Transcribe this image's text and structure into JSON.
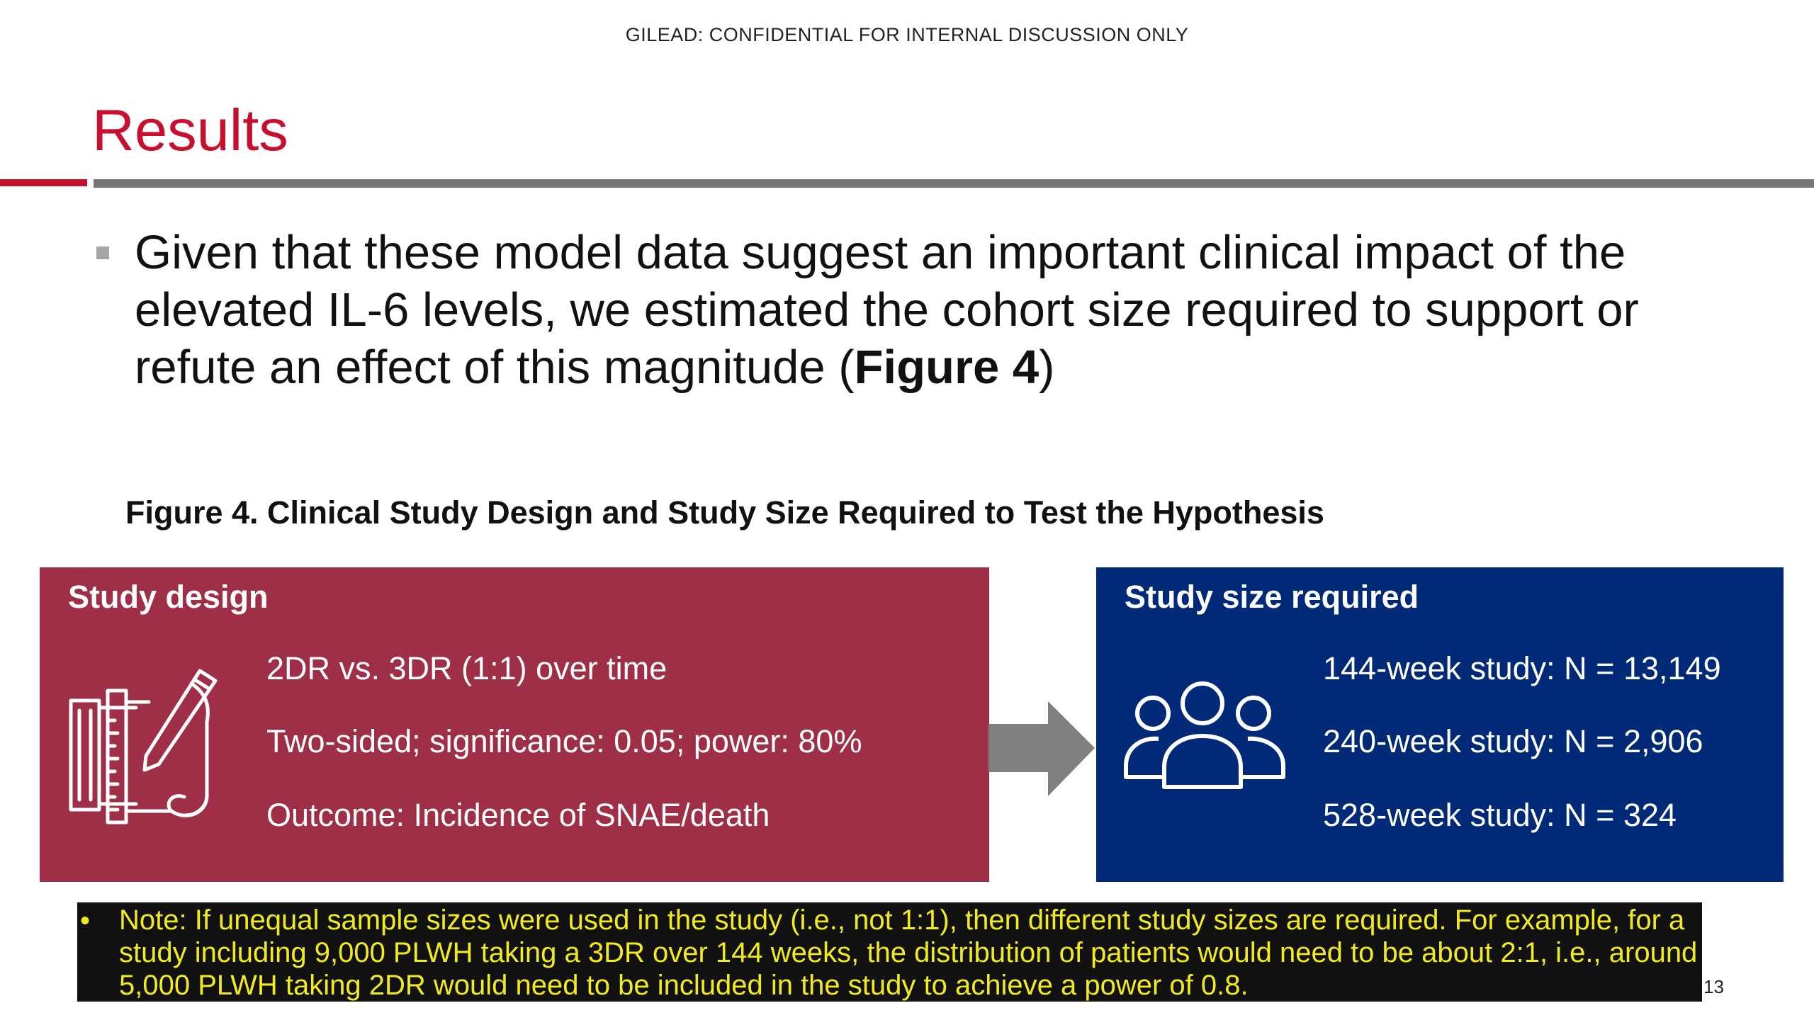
{
  "header": {
    "confidential": "GILEAD:  CONFIDENTIAL FOR INTERNAL DISCUSSION ONLY",
    "title": "Results"
  },
  "bullet": {
    "text_before": "Given that these model data suggest an important clinical impact of the elevated IL-6 levels, we estimated the cohort size required to support or refute an effect of this magnitude (",
    "bold": "Figure 4",
    "text_after": ")"
  },
  "figure": {
    "caption": "Figure 4. Clinical Study Design and Study Size Required to Test the Hypothesis",
    "design_panel": {
      "heading": "Study design",
      "icon": "blueprint-pencil-icon",
      "items": [
        "2DR vs. 3DR (1:1) over time",
        "Two-sided; significance: 0.05; power: 80%",
        "Outcome: Incidence of SNAE/death"
      ]
    },
    "arrow_icon": "right-arrow-icon",
    "size_panel": {
      "heading": "Study size required",
      "icon": "people-group-icon",
      "items": [
        "144-week study: N = 13,149",
        "240-week study: N = 2,906",
        "528-week study: N = 324"
      ]
    }
  },
  "note": {
    "bullet": "•",
    "text": "Note:  If unequal sample sizes were used in the study (i.e., not 1:1), then different study sizes are required.  For example, for a study including 9,000 PLWH taking a 3DR over 144 weeks, the distribution of patients would need to be about 2:1, i.e., around 5,000 PLWH taking 2DR would need to be included in the study to achieve a power of 0.8."
  },
  "page_number": "13",
  "colors": {
    "accent_red": "#C8102E",
    "design_panel": "#9E2F46",
    "size_panel": "#002A77",
    "note_text": "#F2EB1C",
    "arrow": "#808080"
  }
}
